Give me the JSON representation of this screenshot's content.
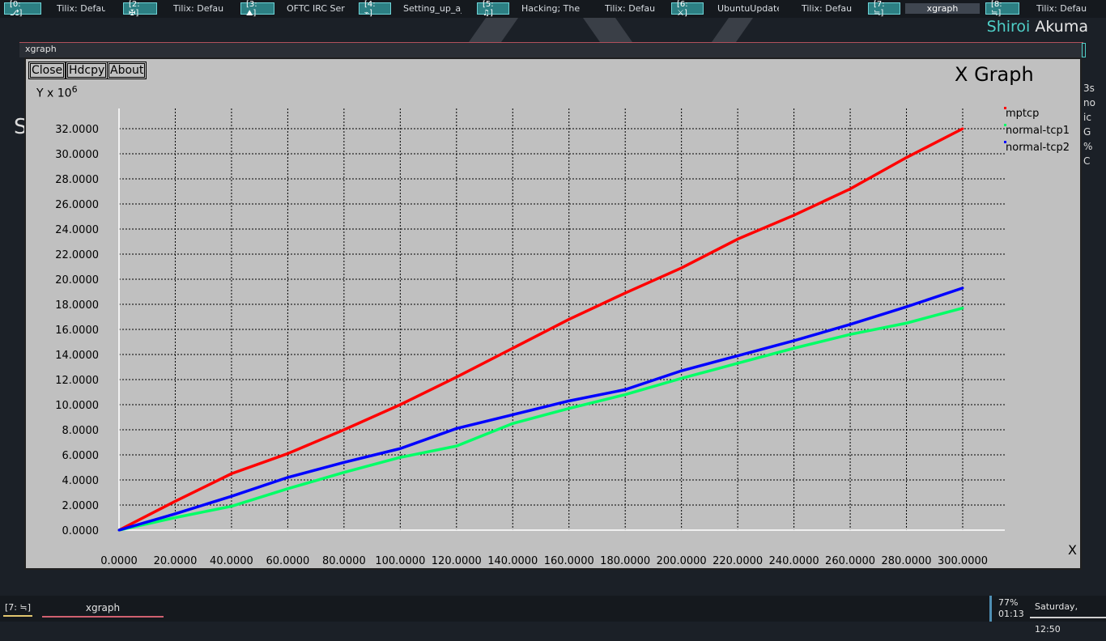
{
  "taskbar": {
    "items": [
      {
        "num": "[0: ⎇]",
        "title": "Tilix: Default",
        "active": false
      },
      {
        "num": "[2: ✠]",
        "title": "Tilix: Default",
        "active": false
      },
      {
        "num": "[3: ⛰]",
        "title": "OFTC IRC Ser...",
        "active": false
      },
      {
        "num": "[4: ⌁]",
        "title": "Setting_up_a_...",
        "active": false
      },
      {
        "num": "[5: ♫]",
        "title": "Hacking; The ...",
        "active": false
      },
      {
        "num": "",
        "title": "Tilix: Default",
        "active": false
      },
      {
        "num": "[6: ⚔]",
        "title": "UbuntuUpdate...",
        "active": false
      },
      {
        "num": "",
        "title": "Tilix: Default",
        "active": false
      },
      {
        "num": "[7: ≒]",
        "title": "xgraph",
        "active": true
      },
      {
        "num": "[8: ≒]",
        "title": "Tilix: Default",
        "active": false
      }
    ]
  },
  "user": {
    "first": "Shiroi",
    "last": "Akuma"
  },
  "window": {
    "title": "xgraph",
    "buttons": [
      "Close",
      "Hdcpy",
      "About"
    ],
    "graph_title": "X Graph",
    "y_unit": "Y x 10",
    "y_unit_exp": "6",
    "close_glyph": "X"
  },
  "side_peek": [
    "3s",
    "no",
    "ic",
    "G",
    "%",
    "C"
  ],
  "left_peek": "S",
  "chart_data": {
    "type": "line",
    "title": "X Graph",
    "ylabel": "Y x 10^6",
    "xlabel": "",
    "xlim": [
      0,
      300
    ],
    "ylim": [
      0,
      32
    ],
    "grid": true,
    "legend": "top-right",
    "xticks": [
      "0.0000",
      "20.0000",
      "40.0000",
      "60.0000",
      "80.0000",
      "100.0000",
      "120.0000",
      "140.0000",
      "160.0000",
      "180.0000",
      "200.0000",
      "220.0000",
      "240.0000",
      "260.0000",
      "280.0000",
      "300.0000"
    ],
    "yticks": [
      "0.0000",
      "2.0000",
      "4.0000",
      "6.0000",
      "8.0000",
      "10.0000",
      "12.0000",
      "14.0000",
      "16.0000",
      "18.0000",
      "20.0000",
      "22.0000",
      "24.0000",
      "26.0000",
      "28.0000",
      "30.0000",
      "32.0000"
    ],
    "x": [
      0,
      20,
      40,
      60,
      80,
      100,
      120,
      140,
      160,
      180,
      200,
      220,
      240,
      260,
      280,
      300
    ],
    "series": [
      {
        "name": "mptcp",
        "color": "#ff0000",
        "values": [
          0,
          2.3,
          4.5,
          6.1,
          8.0,
          10.0,
          12.2,
          14.5,
          16.8,
          18.9,
          20.9,
          23.2,
          25.1,
          27.2,
          29.7,
          32.0
        ]
      },
      {
        "name": "normal-tcp1",
        "color": "#00ff66",
        "values": [
          0,
          1.0,
          1.9,
          3.3,
          4.6,
          5.8,
          6.7,
          8.5,
          9.7,
          10.8,
          12.1,
          13.3,
          14.5,
          15.6,
          16.5,
          17.7
        ]
      },
      {
        "name": "normal-tcp2",
        "color": "#0000ff",
        "values": [
          0,
          1.3,
          2.7,
          4.2,
          5.4,
          6.5,
          8.1,
          9.2,
          10.3,
          11.2,
          12.7,
          13.9,
          15.1,
          16.4,
          17.8,
          19.3
        ]
      }
    ]
  },
  "bottombar": {
    "workspace": "[7: ≒]",
    "task": "xgraph",
    "battery_percent": "77%",
    "battery_time": "01:13",
    "clock": "Saturday, 12:50"
  }
}
